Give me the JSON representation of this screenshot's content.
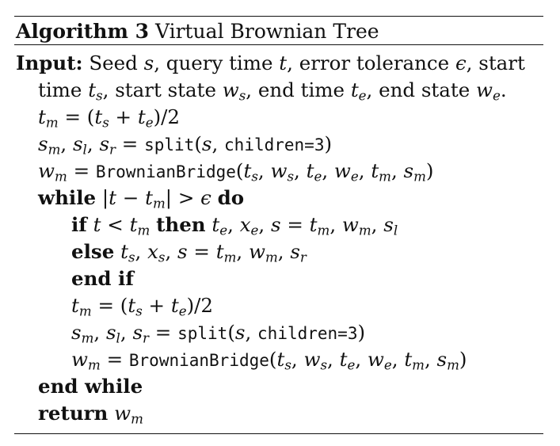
{
  "caption": {
    "label": "Algorithm 3",
    "title": "Virtual Brownian Tree"
  },
  "input": {
    "keyword": "Input:",
    "line1": "Seed s, query time t, error tolerance ε, start",
    "line2": "time tₛ, start state wₛ, end time tₑ, end state wₑ."
  },
  "lines": [
    "t_m = (t_s + t_e)/2",
    "s_m, s_l, s_r = split(s, children=3)",
    "w_m = BrownianBridge(t_s, w_s, t_e, w_e, t_m, s_m)",
    "while |t − t_m| > ε do",
    "if t < t_m then t_e, x_e, s = t_m, w_m, s_l",
    "else t_s, x_s, s = t_m, w_m, s_r",
    "end if",
    "t_m = (t_s + t_e)/2",
    "s_m, s_l, s_r = split(s, children=3)",
    "w_m = BrownianBridge(t_s, w_s, t_e, w_e, t_m, s_m)",
    "end while",
    "return w_m"
  ],
  "keywords": {
    "while": "while",
    "do": "do",
    "if": "if",
    "then": "then",
    "else": "else",
    "end_if": "end if",
    "end_while": "end while",
    "return": "return"
  },
  "functions": {
    "split": "split",
    "children_arg": "children=3",
    "bridge": "BrownianBridge"
  }
}
